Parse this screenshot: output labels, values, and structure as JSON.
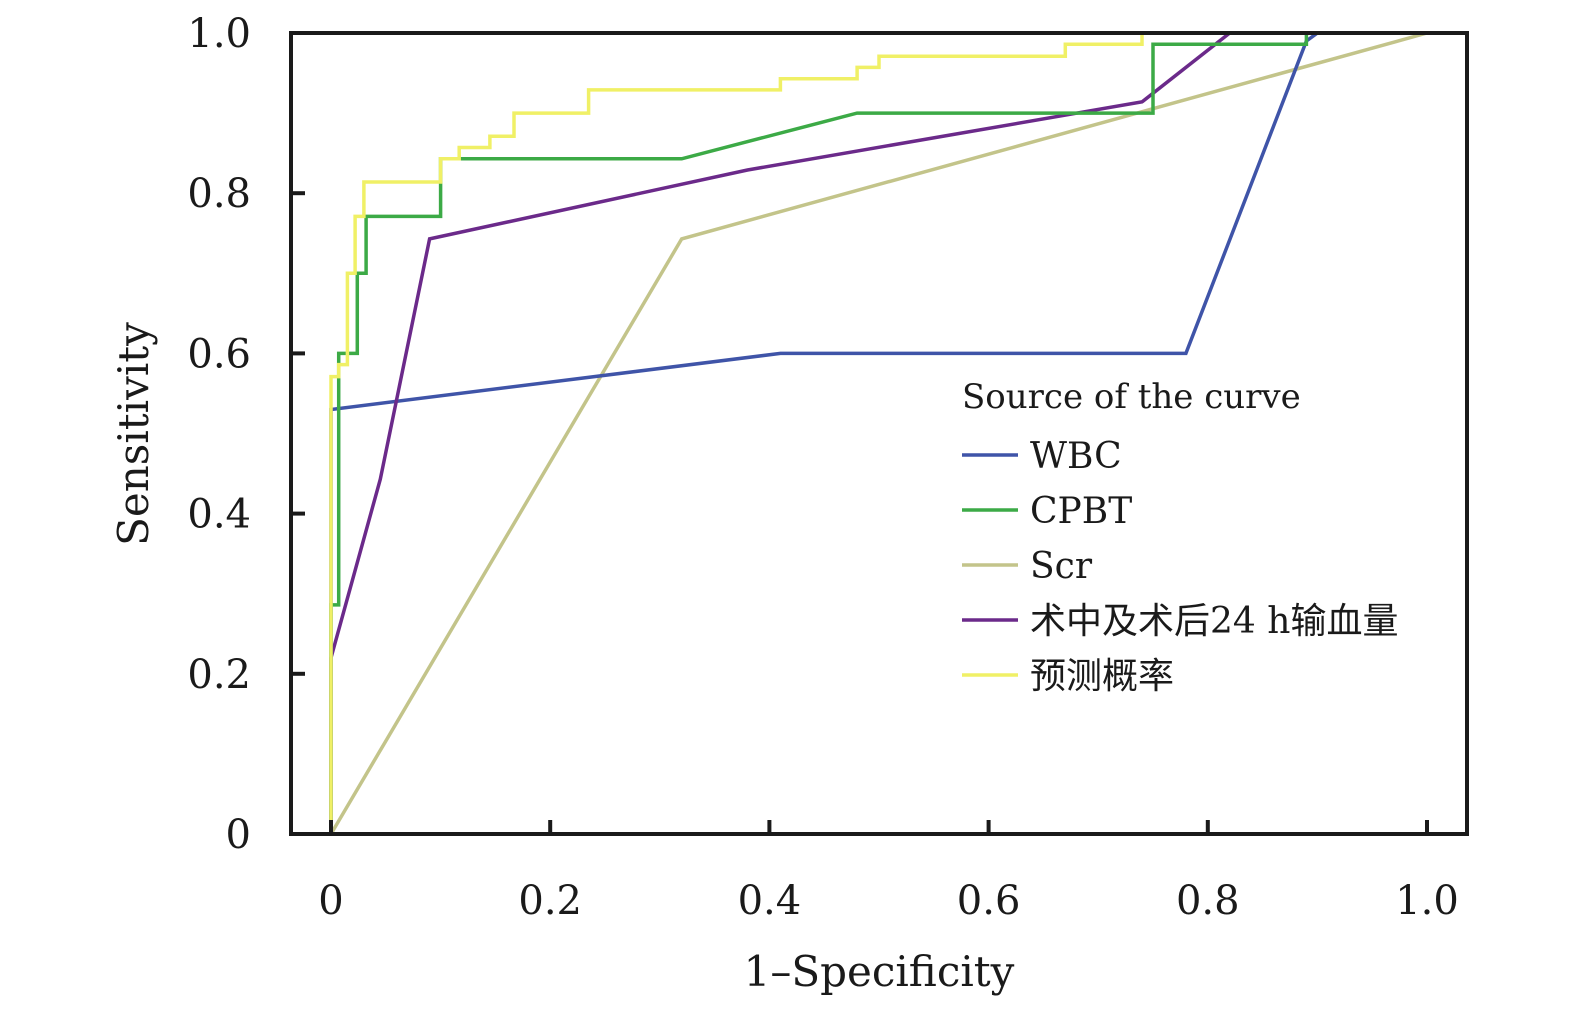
{
  "chart_data": {
    "type": "line",
    "xlabel": "1–Specificity",
    "ylabel": "Sensitivity",
    "xlim": [
      0,
      1.0
    ],
    "ylim": [
      0,
      1.0
    ],
    "x_ticks": [
      0,
      0.2,
      0.4,
      0.6,
      0.8,
      1.0
    ],
    "x_tick_labels": [
      "0",
      "0.2",
      "0.4",
      "0.6",
      "0.8",
      "1.0"
    ],
    "y_ticks": [
      0,
      0.2,
      0.4,
      0.6,
      0.8,
      1.0
    ],
    "y_tick_labels": [
      "0",
      "0.2",
      "0.4",
      "0.6",
      "0.8",
      "1.0"
    ],
    "grid": false,
    "legend_title": "Source of the curve",
    "legend_position": "center-right",
    "series": [
      {
        "name": "WBC",
        "color": "#3f54a8",
        "x": [
          0.0,
          0.0,
          0.41,
          0.78,
          0.89,
          0.9,
          1.0
        ],
        "y": [
          0.0,
          0.53,
          0.6,
          0.6,
          0.99,
          1.0,
          1.0
        ]
      },
      {
        "name": "CPBT",
        "color": "#3caa46",
        "x": [
          0.0,
          0.0,
          0.007,
          0.007,
          0.015,
          0.015,
          0.024,
          0.024,
          0.032,
          0.032,
          0.1,
          0.1,
          0.32,
          0.48,
          0.75,
          0.75,
          0.89,
          0.89,
          1.0
        ],
        "y": [
          0.0,
          0.286,
          0.286,
          0.6,
          0.6,
          0.6,
          0.6,
          0.7,
          0.7,
          0.771,
          0.771,
          0.843,
          0.843,
          0.9,
          0.9,
          0.986,
          0.986,
          1.0,
          1.0
        ],
        "note_removed": null
      },
      {
        "name": "Scr",
        "color": "#c3c48a",
        "x": [
          0.0,
          0.32,
          1.0
        ],
        "y": [
          0.0,
          0.743,
          1.0
        ]
      },
      {
        "name": "术中及术后24 h输血量",
        "color": "#6b2a8a",
        "x": [
          0.0,
          0.0,
          0.045,
          0.09,
          0.38,
          0.74,
          0.82,
          1.0
        ],
        "y": [
          0.0,
          0.22,
          0.443,
          0.743,
          0.829,
          0.914,
          1.0,
          1.0
        ]
      },
      {
        "name": "预测概率",
        "color": "#f0f066",
        "x": [
          0.0,
          0.0,
          0.007,
          0.007,
          0.015,
          0.015,
          0.022,
          0.022,
          0.03,
          0.03,
          0.1,
          0.1,
          0.117,
          0.117,
          0.145,
          0.145,
          0.167,
          0.167,
          0.235,
          0.235,
          0.41,
          0.41,
          0.48,
          0.48,
          0.5,
          0.5,
          0.67,
          0.67,
          0.74,
          0.74,
          1.0
        ],
        "y": [
          0.0,
          0.571,
          0.571,
          0.586,
          0.586,
          0.7,
          0.7,
          0.771,
          0.771,
          0.814,
          0.814,
          0.843,
          0.843,
          0.857,
          0.857,
          0.871,
          0.871,
          0.9,
          0.9,
          0.929,
          0.929,
          0.943,
          0.943,
          0.957,
          0.957,
          0.971,
          0.971,
          0.986,
          0.986,
          1.0,
          1.0
        ]
      }
    ]
  }
}
